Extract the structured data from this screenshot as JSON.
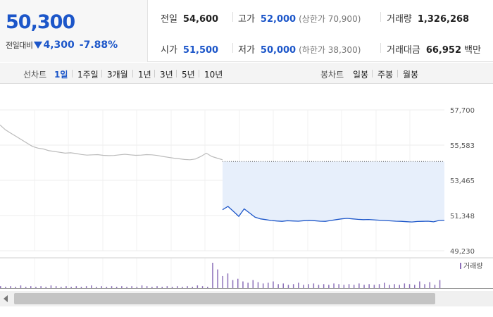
{
  "summary": {
    "price": "50,300",
    "change_label": "전일대비",
    "change_amount": "4,300",
    "change_percent": "-7.88%",
    "prev_close_label": "전일",
    "prev_close": "54,600",
    "open_label": "시가",
    "open": "51,500",
    "high_label": "고가",
    "high": "52,000",
    "upper_limit": "(상한가 70,900)",
    "low_label": "저가",
    "low": "50,000",
    "lower_limit": "(하한가 38,300)",
    "volume_label": "거래량",
    "volume": "1,326,268",
    "turnover_label": "거래대금",
    "turnover": "66,952",
    "turnover_unit": "백만"
  },
  "toolbar": {
    "line_label": "선차트",
    "periods": [
      "1일",
      "1주일",
      "3개월",
      "1년",
      "3년",
      "5년",
      "10년"
    ],
    "active_period": "1일",
    "candle_label": "봉차트",
    "candles": [
      "일봉",
      "주봉",
      "월봉"
    ]
  },
  "colors": {
    "blue": "#1c56c9",
    "fill": "#e7effb",
    "prev_line": "#bbbbbb",
    "volume": "#8c6fb8"
  },
  "chart_data": {
    "type": "line",
    "title": "",
    "ylim": [
      49230,
      57700
    ],
    "yticks": [
      "57,700",
      "55,583",
      "53,465",
      "51,348",
      "49,230"
    ],
    "grid": true,
    "reference_line": 54600,
    "series": [
      {
        "values": [
          56800,
          56500,
          56300,
          56100,
          55900,
          55700,
          55500,
          55400,
          55350,
          55250,
          55200,
          55150,
          55100,
          55120,
          55080,
          55020,
          54980,
          55000,
          55010,
          54970,
          54950,
          54960,
          55000,
          55030,
          55000,
          54970,
          54980,
          55010,
          55000,
          54960,
          54900,
          54850,
          54800,
          54760,
          54720,
          54700,
          54750,
          54900,
          55100,
          54900,
          54800,
          54700
        ]
      },
      {
        "values": [
          51700,
          51900,
          51600,
          51300,
          51750,
          51500,
          51250,
          51150,
          51100,
          51050,
          51020,
          51000,
          51040,
          51020,
          51010,
          51040,
          51060,
          51040,
          51010,
          51000,
          51050,
          51100,
          51150,
          51180,
          51150,
          51120,
          51100,
          51110,
          51090,
          51070,
          51050,
          51030,
          51010,
          51000,
          50980,
          50960,
          50990,
          51000,
          51010,
          50970,
          51050,
          51070
        ]
      }
    ],
    "volume": {
      "legend": "거래량",
      "values": [
        3,
        2,
        3,
        2,
        4,
        2,
        3,
        2,
        3,
        2,
        4,
        3,
        2,
        3,
        2,
        3,
        2,
        3,
        4,
        2,
        3,
        2,
        3,
        2,
        3,
        2,
        3,
        2,
        4,
        3,
        2,
        3,
        2,
        3,
        2,
        3,
        2,
        3,
        2,
        4,
        3,
        2,
        38,
        28,
        18,
        22,
        12,
        14,
        10,
        8,
        12,
        9,
        7,
        8,
        10,
        6,
        7,
        5,
        6,
        8,
        5,
        6,
        7,
        5,
        6,
        5,
        7,
        6,
        5,
        6,
        5,
        7,
        5,
        6,
        5,
        6,
        8,
        5,
        6,
        5,
        7,
        6,
        5,
        10,
        6,
        9,
        5,
        12
      ]
    }
  }
}
